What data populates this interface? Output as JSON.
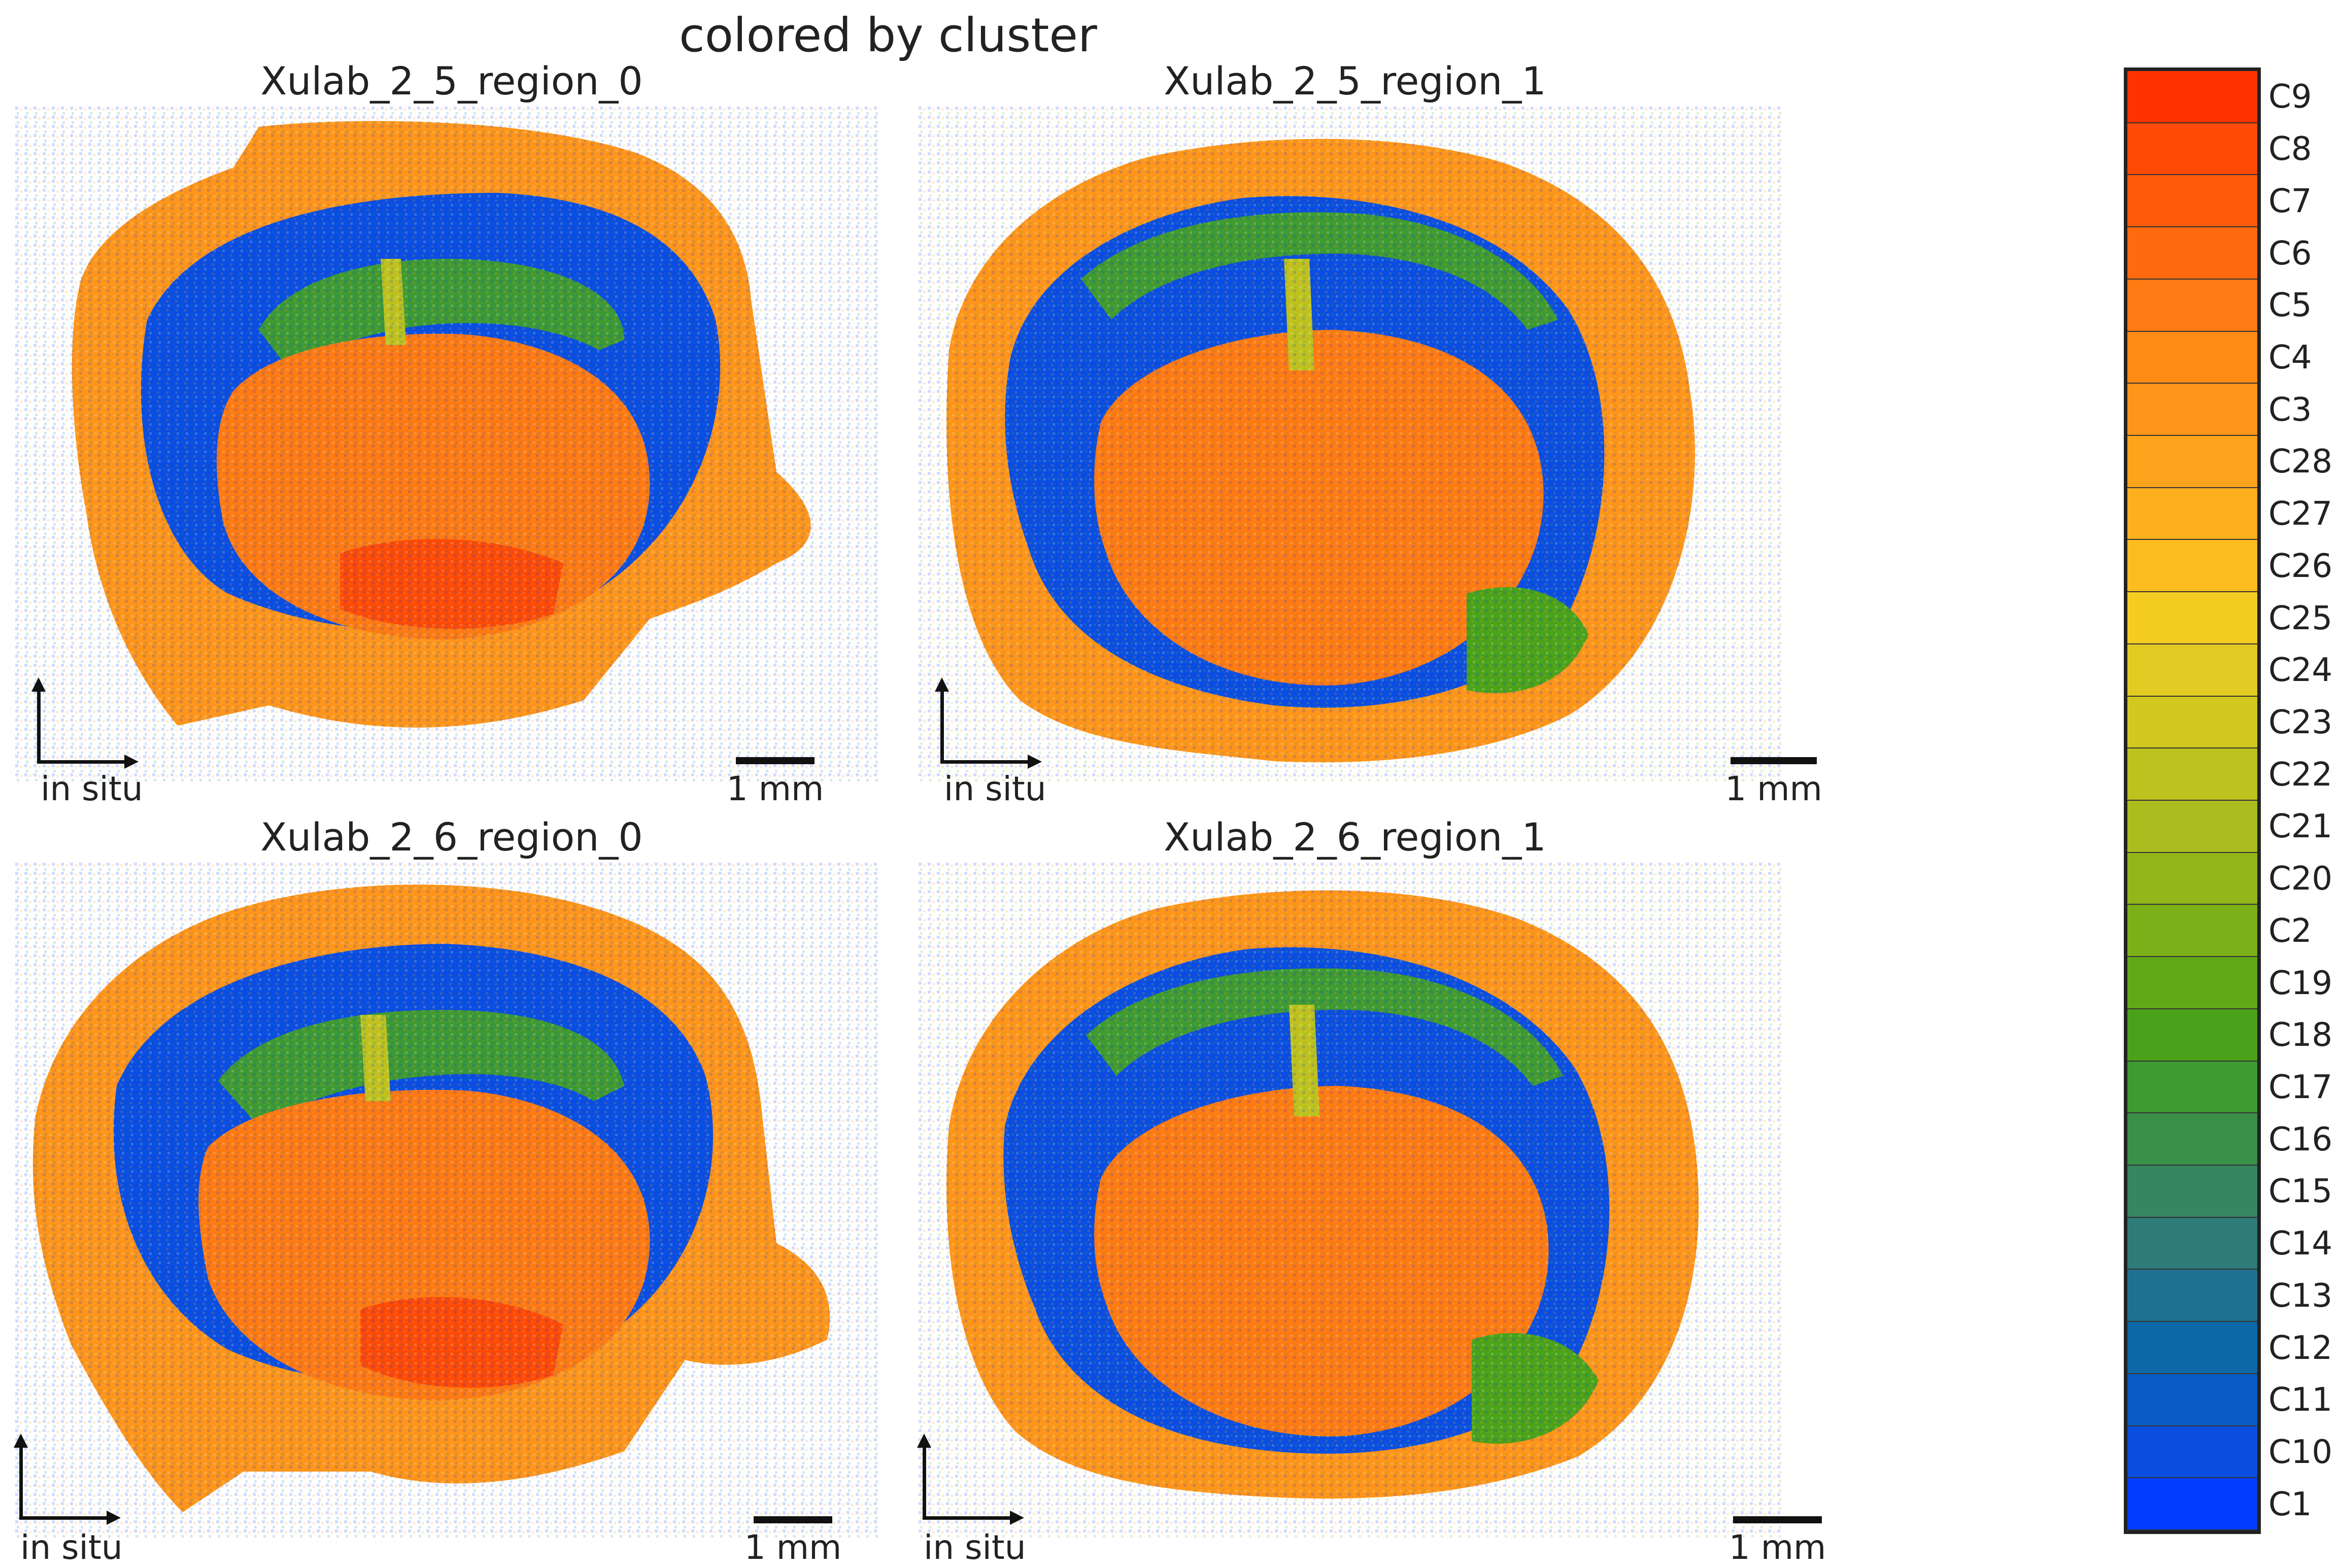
{
  "figure": {
    "title": "colored by cluster"
  },
  "panels": [
    {
      "title": "Xulab_2_5_region_0",
      "axis_label": "in situ",
      "scale_label": "1 mm"
    },
    {
      "title": "Xulab_2_5_region_1",
      "axis_label": "in situ",
      "scale_label": "1 mm"
    },
    {
      "title": "Xulab_2_6_region_0",
      "axis_label": "in situ",
      "scale_label": "1 mm"
    },
    {
      "title": "Xulab_2_6_region_1",
      "axis_label": "in situ",
      "scale_label": "1 mm"
    }
  ],
  "legend": {
    "entries": [
      {
        "label": "C9",
        "color": "#ff3300"
      },
      {
        "label": "C8",
        "color": "#ff4a05"
      },
      {
        "label": "C7",
        "color": "#ff5a0a"
      },
      {
        "label": "C6",
        "color": "#ff6a10"
      },
      {
        "label": "C5",
        "color": "#ff7a12"
      },
      {
        "label": "C4",
        "color": "#ff8a16"
      },
      {
        "label": "C3",
        "color": "#ff951a"
      },
      {
        "label": "C28",
        "color": "#fea31c"
      },
      {
        "label": "C27",
        "color": "#fdb01e"
      },
      {
        "label": "C26",
        "color": "#fbbd20"
      },
      {
        "label": "C25",
        "color": "#f5cc22"
      },
      {
        "label": "C24",
        "color": "#e2cb22"
      },
      {
        "label": "C23",
        "color": "#d2c820"
      },
      {
        "label": "C22",
        "color": "#bec21e"
      },
      {
        "label": "C21",
        "color": "#a9bd1e"
      },
      {
        "label": "C20",
        "color": "#93b71a"
      },
      {
        "label": "C2",
        "color": "#7cb018"
      },
      {
        "label": "C19",
        "color": "#62a918"
      },
      {
        "label": "C18",
        "color": "#4aa21a"
      },
      {
        "label": "C17",
        "color": "#3e9a32"
      },
      {
        "label": "C16",
        "color": "#3a9048"
      },
      {
        "label": "C15",
        "color": "#368660"
      },
      {
        "label": "C14",
        "color": "#2e7c78"
      },
      {
        "label": "C13",
        "color": "#1e7290"
      },
      {
        "label": "C12",
        "color": "#0c68a6"
      },
      {
        "label": "C11",
        "color": "#0a5cc4"
      },
      {
        "label": "C10",
        "color": "#0a4ee0"
      },
      {
        "label": "C1",
        "color": "#003cff"
      }
    ]
  }
}
